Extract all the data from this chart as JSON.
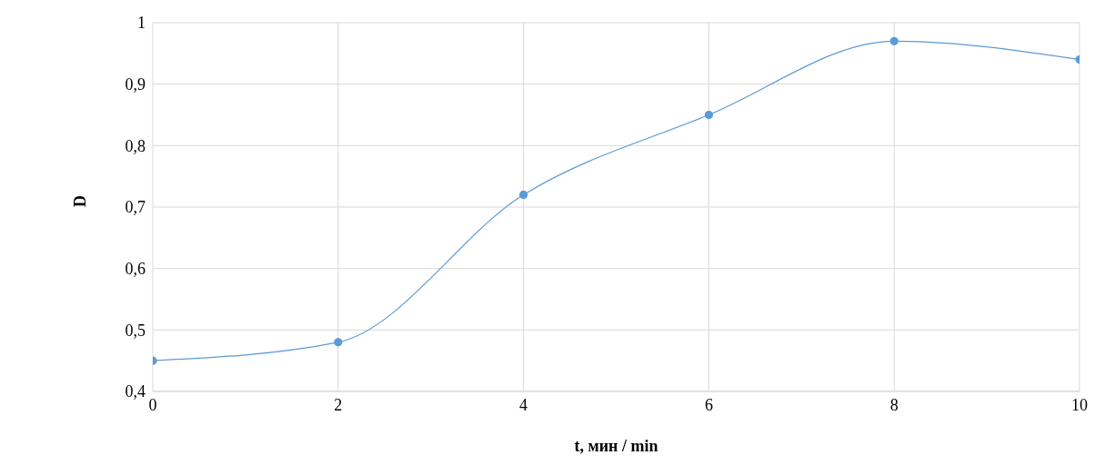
{
  "chart_data": {
    "type": "line",
    "xlabel": "t, мин / min",
    "ylabel": "D",
    "x": [
      0,
      2,
      4,
      6,
      8,
      10
    ],
    "series": [
      {
        "color": "#5b9bd5",
        "values": [
          0.45,
          0.48,
          0.72,
          0.85,
          0.97,
          0.94
        ]
      }
    ],
    "xlim": [
      0,
      10
    ],
    "xticks": [
      0,
      2,
      4,
      6,
      8,
      10
    ],
    "ylim": [
      0.4,
      1
    ],
    "yticks": [
      {
        "value": 0.4,
        "label": "0,4"
      },
      {
        "value": 0.5,
        "label": "0,5"
      },
      {
        "value": 0.6,
        "label": "0,6"
      },
      {
        "value": 0.7,
        "label": "0,7"
      },
      {
        "value": 0.8,
        "label": "0,8"
      },
      {
        "value": 0.9,
        "label": "0,9"
      },
      {
        "value": 1,
        "label": "1"
      }
    ],
    "grid": true,
    "marker": "circle",
    "line_style": "solid",
    "legend": false
  }
}
